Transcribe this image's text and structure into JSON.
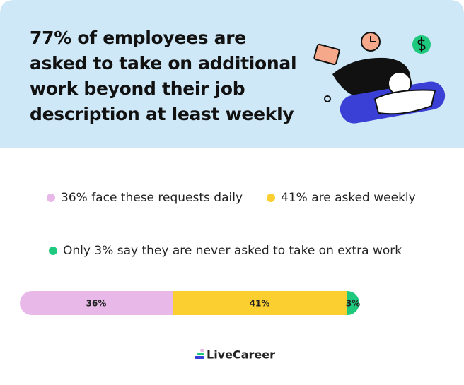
{
  "title": "77% of employees are asked to take on additional work beyond their job description at least weekly",
  "brand": "LiveCareer",
  "chart_data": {
    "type": "bar",
    "orientation": "horizontal",
    "stacked": true,
    "xlim": [
      0,
      100
    ],
    "series": [
      {
        "name": "36% face these requests daily",
        "color": "#e8b9e8",
        "values": [
          36
        ],
        "value_labels": [
          "36%"
        ]
      },
      {
        "name": "41% are asked weekly",
        "color": "#fbcf2f",
        "values": [
          41
        ],
        "value_labels": [
          "41%"
        ]
      },
      {
        "name": "Only 3% say they are never asked to take on extra work",
        "color": "#1ec97e",
        "values": [
          3
        ],
        "value_labels": [
          "3%"
        ]
      }
    ]
  }
}
